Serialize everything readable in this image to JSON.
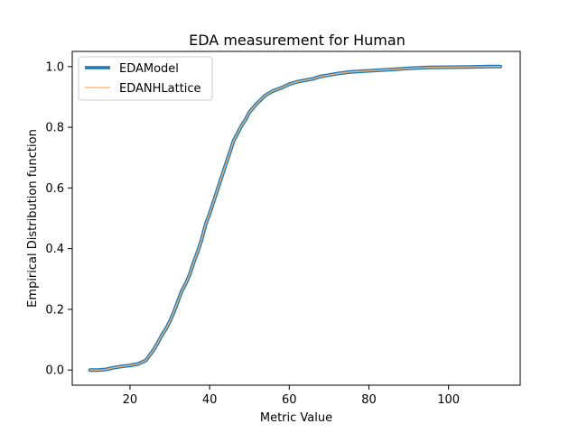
{
  "chart_data": {
    "type": "line",
    "title": "EDA measurement for Human",
    "xlabel": "Metric Value",
    "ylabel": "Empirical Distribution function",
    "xlim": [
      5.5,
      118
    ],
    "ylim": [
      -0.05,
      1.05
    ],
    "xticks": [
      20,
      40,
      60,
      80,
      100
    ],
    "yticks": [
      0.0,
      0.2,
      0.4,
      0.6,
      0.8,
      1.0
    ],
    "xtick_labels": [
      "20",
      "40",
      "60",
      "80",
      "100"
    ],
    "ytick_labels": [
      "0.0",
      "0.2",
      "0.4",
      "0.6",
      "0.8",
      "1.0"
    ],
    "grid": false,
    "legend_position": "top-left",
    "series": [
      {
        "name": "EDAModel",
        "color": "#1f77b4",
        "x": [
          10,
          12,
          14,
          16,
          18,
          20,
          22,
          24,
          25,
          26,
          27,
          28,
          29,
          30,
          31,
          32,
          33,
          34,
          35,
          36,
          37,
          38,
          39,
          40,
          41,
          42,
          43,
          44,
          45,
          46,
          47,
          48,
          49,
          50,
          51,
          52,
          53,
          54,
          55,
          56,
          58,
          60,
          62,
          64,
          66,
          68,
          70,
          72,
          75,
          80,
          85,
          90,
          95,
          100,
          105,
          110,
          113
        ],
        "y": [
          0.0,
          0.0,
          0.002,
          0.008,
          0.012,
          0.015,
          0.02,
          0.032,
          0.05,
          0.068,
          0.09,
          0.115,
          0.135,
          0.16,
          0.19,
          0.225,
          0.26,
          0.285,
          0.315,
          0.355,
          0.39,
          0.43,
          0.48,
          0.515,
          0.555,
          0.595,
          0.635,
          0.675,
          0.715,
          0.755,
          0.78,
          0.805,
          0.825,
          0.85,
          0.865,
          0.88,
          0.892,
          0.905,
          0.913,
          0.92,
          0.93,
          0.942,
          0.95,
          0.955,
          0.96,
          0.968,
          0.972,
          0.977,
          0.982,
          0.986,
          0.99,
          0.994,
          0.997,
          0.998,
          0.999,
          1.0,
          1.0
        ]
      },
      {
        "name": "EDANHLattice",
        "color": "#ffbb78",
        "x": [
          10,
          12,
          14,
          16,
          18,
          20,
          22,
          24,
          25,
          26,
          27,
          28,
          29,
          30,
          31,
          32,
          33,
          34,
          35,
          36,
          37,
          38,
          39,
          40,
          41,
          42,
          43,
          44,
          45,
          46,
          47,
          48,
          49,
          50,
          51,
          52,
          53,
          54,
          55,
          56,
          58,
          60,
          62,
          64,
          66,
          68,
          70,
          72,
          75,
          80,
          85,
          90,
          95,
          100,
          105,
          110,
          113
        ],
        "y": [
          0.0,
          0.0,
          0.002,
          0.008,
          0.012,
          0.015,
          0.02,
          0.032,
          0.05,
          0.068,
          0.09,
          0.115,
          0.135,
          0.16,
          0.19,
          0.225,
          0.26,
          0.285,
          0.315,
          0.355,
          0.39,
          0.43,
          0.48,
          0.515,
          0.555,
          0.595,
          0.635,
          0.675,
          0.715,
          0.755,
          0.78,
          0.805,
          0.825,
          0.85,
          0.865,
          0.88,
          0.892,
          0.905,
          0.913,
          0.92,
          0.93,
          0.942,
          0.95,
          0.955,
          0.96,
          0.968,
          0.972,
          0.977,
          0.982,
          0.986,
          0.99,
          0.994,
          0.997,
          0.998,
          0.999,
          1.0,
          1.0
        ]
      }
    ]
  }
}
